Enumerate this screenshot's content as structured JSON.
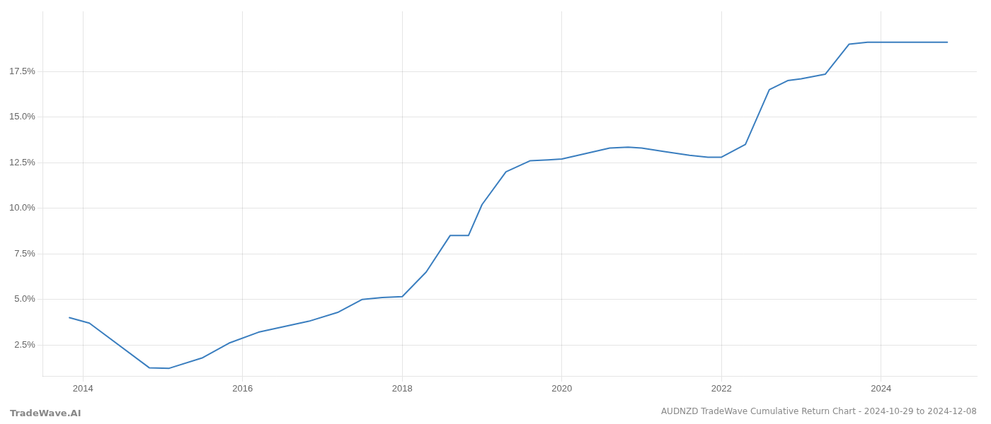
{
  "chart_data": {
    "type": "line",
    "title": "AUDNZD TradeWave Cumulative Return Chart - 2024-10-29 to 2024-12-08",
    "annotations": [
      "TradeWave.AI"
    ],
    "color": "#3a7ebf",
    "x": [
      2013.83,
      2014.08,
      2014.83,
      2015.08,
      2015.5,
      2015.83,
      2016.2,
      2016.83,
      2017.2,
      2017.5,
      2017.75,
      2018.0,
      2018.3,
      2018.6,
      2018.83,
      2019.0,
      2019.3,
      2019.6,
      2019.83,
      2020.0,
      2020.3,
      2020.6,
      2020.83,
      2021.0,
      2021.3,
      2021.6,
      2021.83,
      2022.0,
      2022.3,
      2022.6,
      2022.83,
      2023.0,
      2023.3,
      2023.6,
      2023.83,
      2024.0,
      2024.3,
      2024.83
    ],
    "values": [
      4.0,
      3.7,
      1.25,
      1.22,
      1.8,
      2.6,
      3.2,
      3.8,
      4.3,
      5.0,
      5.1,
      5.15,
      6.5,
      8.5,
      8.5,
      10.2,
      12.0,
      12.6,
      12.65,
      12.7,
      13.0,
      13.3,
      13.35,
      13.3,
      13.1,
      12.9,
      12.8,
      12.8,
      13.5,
      16.5,
      17.0,
      17.1,
      17.35,
      19.0,
      19.1,
      19.1,
      19.1,
      19.1
    ],
    "xlim": [
      2013.5,
      2025.2
    ],
    "ylim": [
      0.8,
      20.8
    ],
    "xticks": [
      2014,
      2016,
      2018,
      2020,
      2022,
      2024
    ],
    "yticks": [
      {
        "value": 2.5,
        "label": "2.5%"
      },
      {
        "value": 5.0,
        "label": "5.0%"
      },
      {
        "value": 7.5,
        "label": "7.5%"
      },
      {
        "value": 10.0,
        "label": "10.0%"
      },
      {
        "value": 12.5,
        "label": "12.5%"
      },
      {
        "value": 15.0,
        "label": "15.0%"
      },
      {
        "value": 17.5,
        "label": "17.5%"
      }
    ],
    "grid": true
  }
}
